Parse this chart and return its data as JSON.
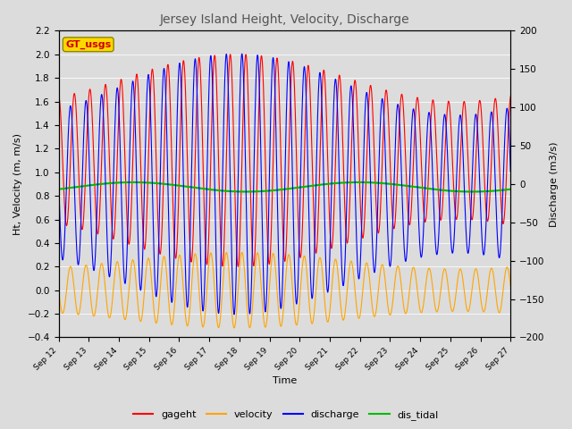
{
  "title": "Jersey Island Height, Velocity, Discharge",
  "xlabel": "Time",
  "ylabel_left": "Ht, Velocity (m, m/s)",
  "ylabel_right": "Discharge (m3/s)",
  "ylim_left": [
    -0.4,
    2.2
  ],
  "ylim_right": [
    -200,
    200
  ],
  "xtick_labels": [
    "Sep 12",
    "Sep 13",
    "Sep 14",
    "Sep 15",
    "Sep 16",
    "Sep 17",
    "Sep 18",
    "Sep 19",
    "Sep 20",
    "Sep 21",
    "Sep 22",
    "Sep 23",
    "Sep 24",
    "Sep 25",
    "Sep 26",
    "Sep 27"
  ],
  "colors": {
    "gageht": "#FF0000",
    "velocity": "#FFA500",
    "discharge": "#0000FF",
    "dis_tidal": "#00BB00"
  },
  "legend_box_label": "GT_usgs",
  "legend_box_facecolor": "#FFD700",
  "legend_box_edgecolor": "#888800",
  "legend_box_text_color": "#CC0000",
  "fig_facecolor": "#DCDCDC",
  "plot_facecolor": "#DCDCDC",
  "n_days": 15,
  "tidal_period_hours": 12.42,
  "spring_neap_period_days": 14.77,
  "gageht_mean": 1.1,
  "gageht_amp_spring": 0.9,
  "gageht_amp_neap": 0.5,
  "velocity_amp_spring": 0.32,
  "velocity_amp_neap": 0.18,
  "discharge_amp_spring": 170,
  "discharge_amp_neap": 90,
  "dis_tidal_mean": 0.875,
  "dis_tidal_amp": 0.04,
  "dis_tidal_period_days": 7.5
}
